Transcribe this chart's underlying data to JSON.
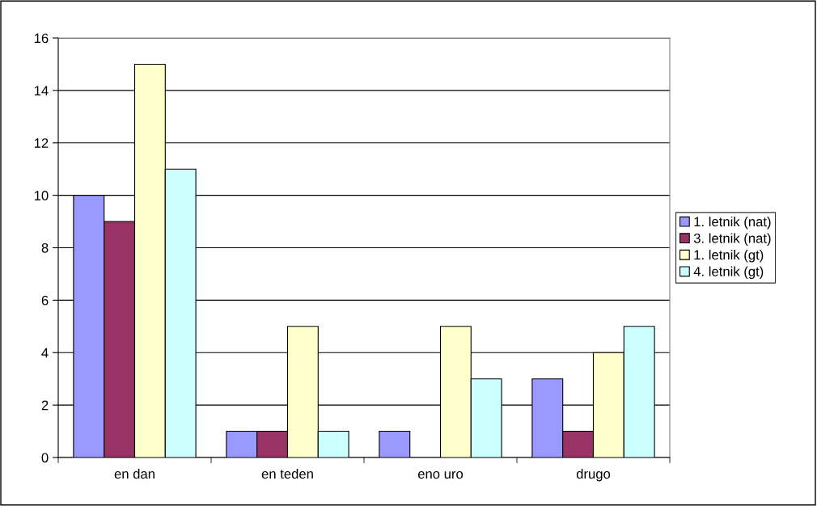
{
  "chart_data": {
    "type": "bar",
    "categories": [
      "en dan",
      "en teden",
      "eno uro",
      "drugo"
    ],
    "series": [
      {
        "name": "1. letnik (nat)",
        "color": "#9999ff",
        "values": [
          10,
          1,
          1,
          3
        ]
      },
      {
        "name": "3. letnik (nat)",
        "color": "#993366",
        "values": [
          9,
          1,
          null,
          1
        ]
      },
      {
        "name": "1. letnik (gt)",
        "color": "#ffffcc",
        "values": [
          15,
          5,
          5,
          4
        ]
      },
      {
        "name": "4. letnik (gt)",
        "color": "#ccffff",
        "values": [
          11,
          1,
          3,
          5
        ]
      }
    ],
    "ylim": [
      0,
      16
    ],
    "yticks": [
      0,
      2,
      4,
      6,
      8,
      10,
      12,
      14,
      16
    ],
    "grid": "y",
    "legend": "right"
  }
}
